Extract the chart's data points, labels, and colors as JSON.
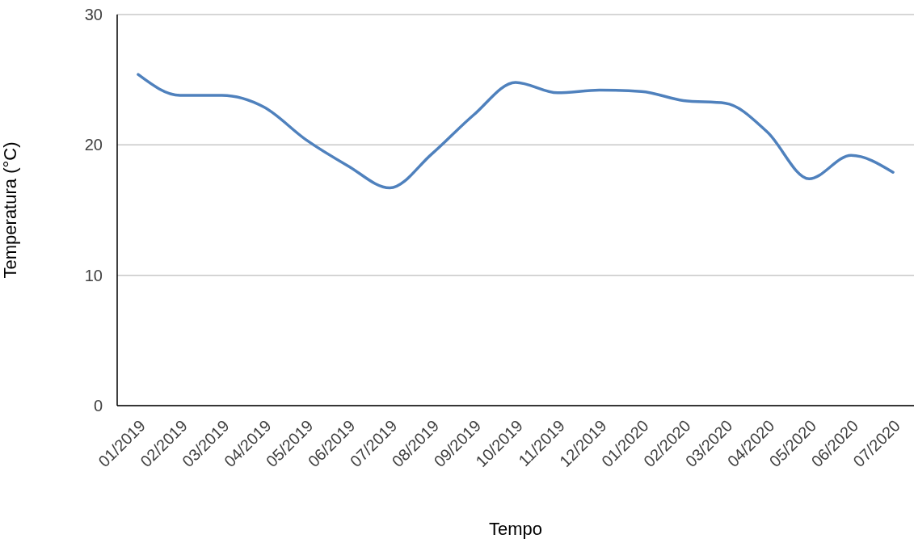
{
  "chart_data": {
    "type": "line",
    "xlabel": "Tempo",
    "ylabel": "Temperatura (°C)",
    "categories": [
      "01/2019",
      "02/2019",
      "03/2019",
      "04/2019",
      "05/2019",
      "06/2019",
      "07/2019",
      "08/2019",
      "09/2019",
      "10/2019",
      "11/2019",
      "12/2019",
      "01/2020",
      "02/2020",
      "03/2020",
      "04/2020",
      "05/2020",
      "06/2020",
      "07/2020"
    ],
    "series": [
      {
        "color": "#4f81bd",
        "values": [
          25.4,
          23.8,
          23.8,
          22.9,
          20.4,
          18.4,
          16.7,
          19.3,
          22.3,
          24.8,
          24.0,
          24.2,
          24.1,
          23.4,
          23.2,
          21.0,
          17.4,
          19.2,
          17.9
        ]
      }
    ],
    "ylim": [
      0,
      30
    ],
    "yticks": [
      0,
      10,
      20,
      30
    ],
    "grid": "y",
    "legend": false,
    "marker": "none",
    "line_style": "solid"
  }
}
